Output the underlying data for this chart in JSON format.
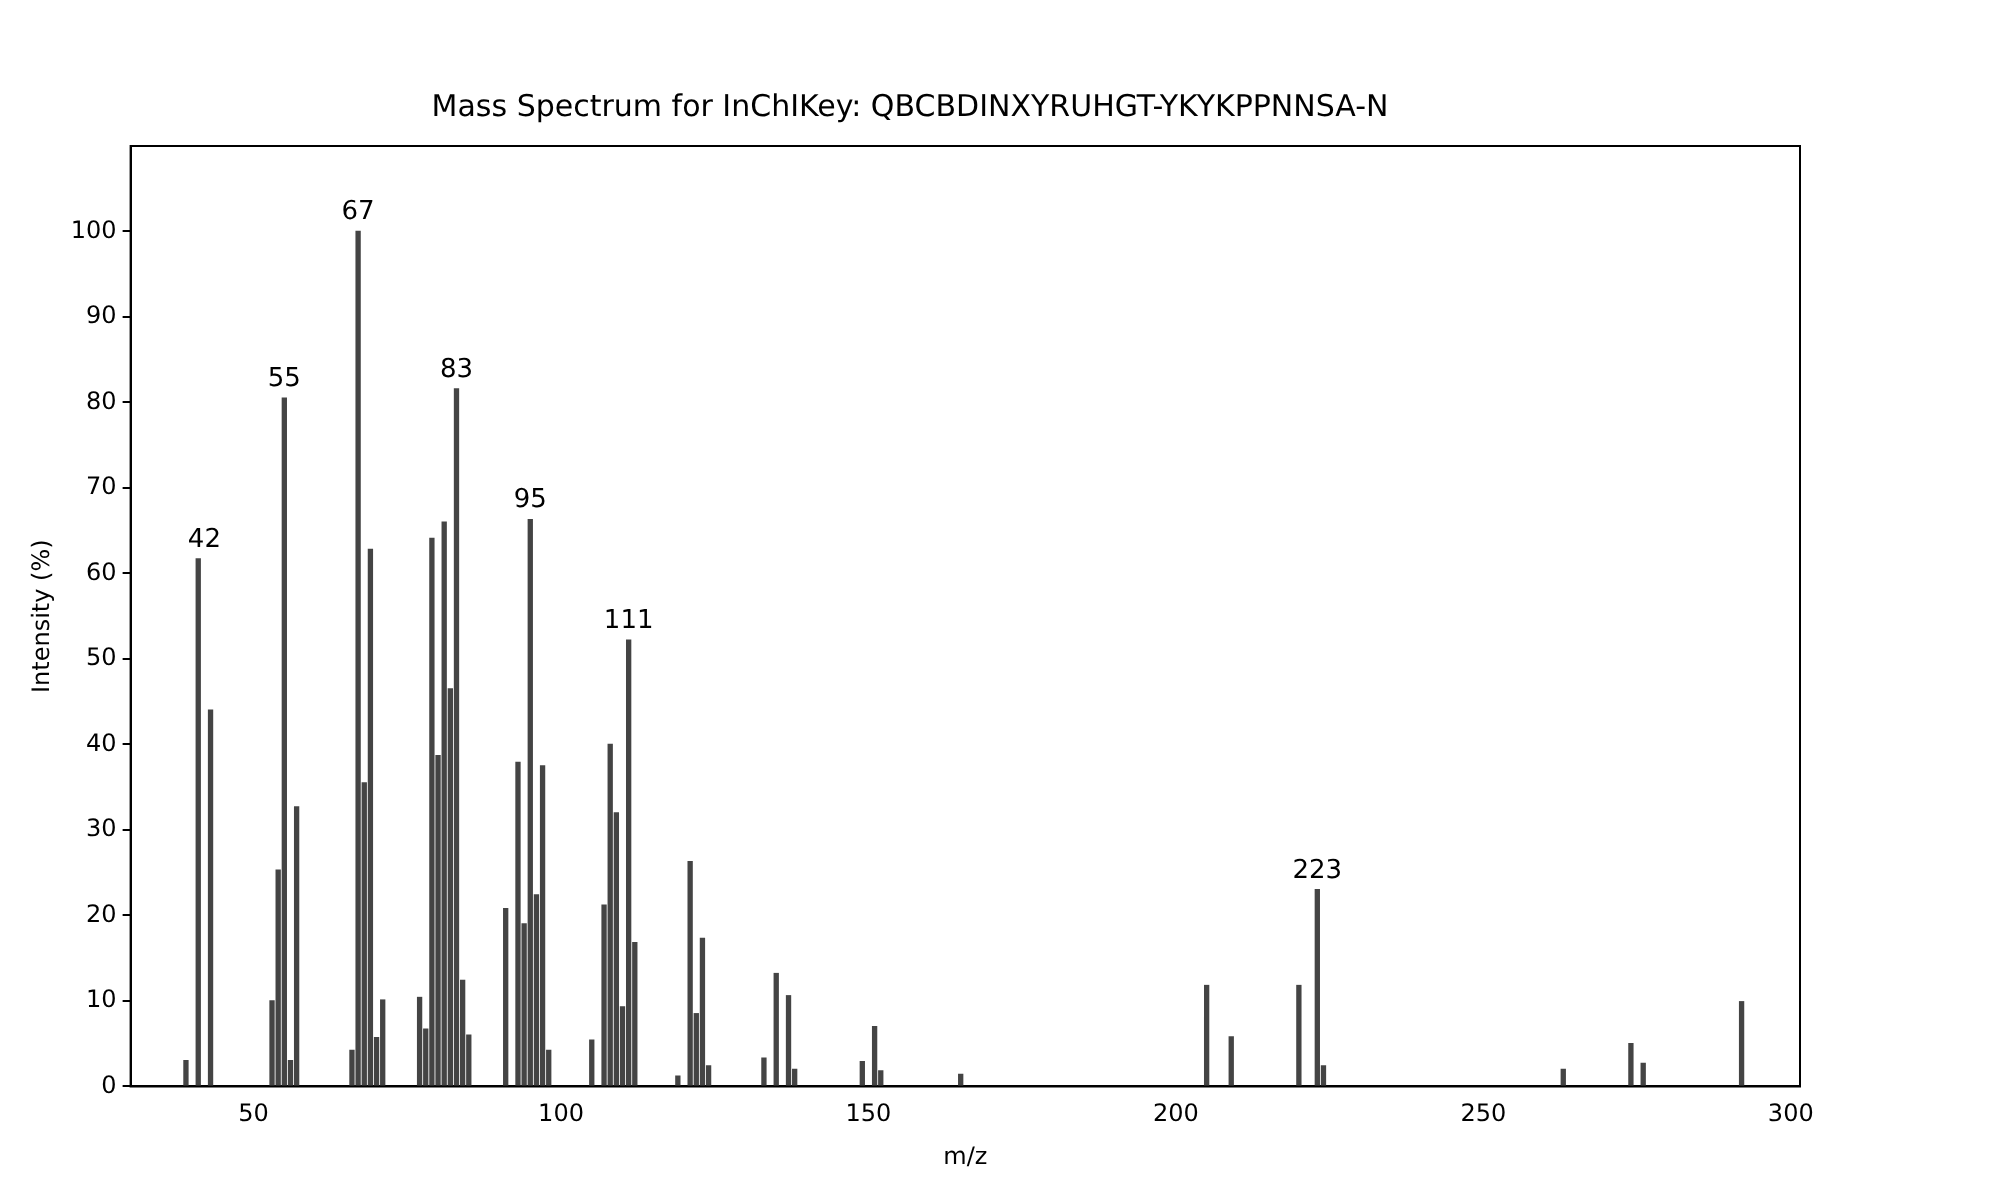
{
  "chart_data": {
    "type": "bar",
    "title": "Mass Spectrum for InChIKey: QBCBDINXYRUHGT-YKYKPPNNSA-N",
    "xlabel": "m/z",
    "ylabel": "Intensity (%)",
    "x": [
      39,
      41,
      43,
      53,
      54,
      55,
      56,
      57,
      66,
      67,
      68,
      69,
      70,
      71,
      77,
      78,
      79,
      80,
      81,
      82,
      83,
      84,
      85,
      91,
      93,
      94,
      95,
      96,
      97,
      98,
      105,
      107,
      108,
      109,
      110,
      111,
      112,
      119,
      121,
      122,
      123,
      124,
      133,
      135,
      137,
      138,
      149,
      151,
      152,
      165,
      205,
      209,
      220,
      223,
      224,
      263,
      274,
      276,
      292
    ],
    "values": [
      3,
      61.7,
      44,
      10,
      25.3,
      80.5,
      3,
      32.7,
      4.2,
      100,
      35.5,
      62.8,
      5.7,
      10.1,
      10.4,
      6.7,
      64.1,
      38.7,
      66,
      46.5,
      81.6,
      12.4,
      6,
      20.8,
      37.9,
      19,
      66.3,
      22.4,
      37.5,
      4.2,
      5.4,
      21.2,
      40,
      32,
      9.3,
      52.2,
      16.8,
      1.2,
      26.3,
      8.5,
      17.3,
      2.4,
      3.3,
      13.2,
      10.6,
      2,
      2.9,
      7,
      1.8,
      1.4,
      11.8,
      5.8,
      11.8,
      23,
      2.4,
      2,
      5,
      2.7,
      9.9
    ],
    "color": "#444444",
    "xlim": [
      30,
      301.5
    ],
    "xticks": [
      50,
      100,
      150,
      200,
      250,
      300
    ],
    "ylim": [
      0,
      110
    ],
    "yticks": [
      0,
      10,
      20,
      30,
      40,
      50,
      60,
      70,
      80,
      90,
      100
    ],
    "grid": false,
    "legend": false,
    "annotations": [
      {
        "text": "42",
        "x": 42,
        "y": 61.7
      },
      {
        "text": "55",
        "x": 55,
        "y": 80.5
      },
      {
        "text": "67",
        "x": 67,
        "y": 100
      },
      {
        "text": "83",
        "x": 83,
        "y": 81.6
      },
      {
        "text": "95",
        "x": 95,
        "y": 66.3
      },
      {
        "text": "111",
        "x": 111,
        "y": 52.2
      },
      {
        "text": "223",
        "x": 223,
        "y": 23
      }
    ]
  }
}
